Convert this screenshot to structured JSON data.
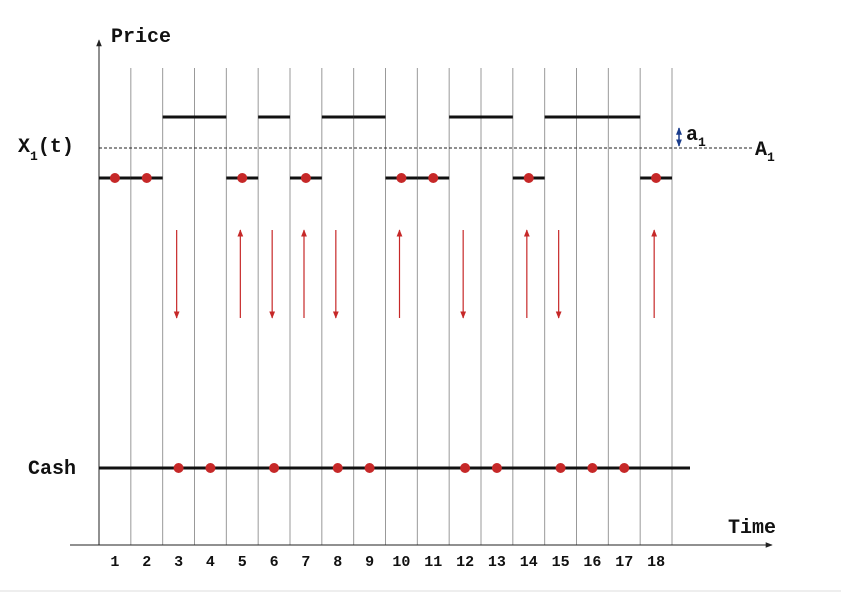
{
  "axes": {
    "y_label": "Price",
    "x_label": "Time"
  },
  "levels": {
    "price": {
      "main": "X",
      "sub": "1",
      "suffix": "(t)"
    },
    "a": {
      "main": "a",
      "sub": "1"
    },
    "A": {
      "main": "A",
      "sub": "1"
    },
    "cash": "Cash"
  },
  "periods": [
    "1",
    "2",
    "3",
    "4",
    "5",
    "6",
    "7",
    "8",
    "9",
    "10",
    "11",
    "12",
    "13",
    "14",
    "15",
    "16",
    "17",
    "18"
  ]
}
